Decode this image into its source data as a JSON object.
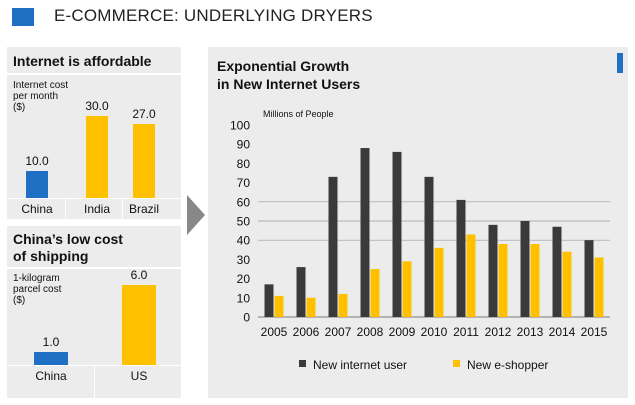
{
  "header": {
    "title": "E-COMMERCE: UNDERLYING DRYERS",
    "accent_color": "#1f6fc4"
  },
  "affordable": {
    "title": "Internet is affordable",
    "axis_label": "Internet cost per month ($)",
    "axis_label_lines": [
      "Internet  cost",
      "per month",
      "($)"
    ],
    "bars": [
      {
        "category": "China",
        "value": 10.0,
        "label": "10.0",
        "color": "#1f6fc4"
      },
      {
        "category": "India",
        "value": 30.0,
        "label": "30.0",
        "color": "#ffc000"
      },
      {
        "category": "Brazil",
        "value": 27.0,
        "label": "27.0",
        "color": "#ffc000"
      }
    ]
  },
  "shipping": {
    "title_lines": [
      "China’s low cost",
      "of shipping"
    ],
    "axis_label_lines": [
      "1-kilogram",
      "parcel cost",
      "($)"
    ],
    "bars": [
      {
        "category": "China",
        "value": 1.0,
        "label": "1.0",
        "color": "#1f6fc4"
      },
      {
        "category": "US",
        "value": 6.0,
        "label": "6.0",
        "color": "#ffc000"
      }
    ]
  },
  "growth": {
    "title_lines": [
      "Exponential Growth",
      "in New Internet Users"
    ]
  },
  "chart_data": {
    "type": "bar",
    "title": "Exponential Growth in New Internet Users",
    "ylabel": "Millions of People",
    "ylim": [
      0,
      100
    ],
    "yticks": [
      0,
      10,
      20,
      30,
      40,
      50,
      60,
      70,
      80,
      90,
      100
    ],
    "categories": [
      "2005",
      "2006",
      "2007",
      "2008",
      "2009",
      "2010",
      "2011",
      "2012",
      "2013",
      "2014",
      "2015"
    ],
    "series": [
      {
        "name": "New internet user",
        "color": "#3a3a3a",
        "values": [
          17,
          26,
          73,
          88,
          86,
          73,
          61,
          48,
          50,
          47,
          40
        ]
      },
      {
        "name": "New e-shopper",
        "color": "#ffc000",
        "values": [
          11,
          10,
          12,
          25,
          29,
          36,
          43,
          38,
          38,
          34,
          31
        ]
      }
    ],
    "legend": "bottom"
  }
}
